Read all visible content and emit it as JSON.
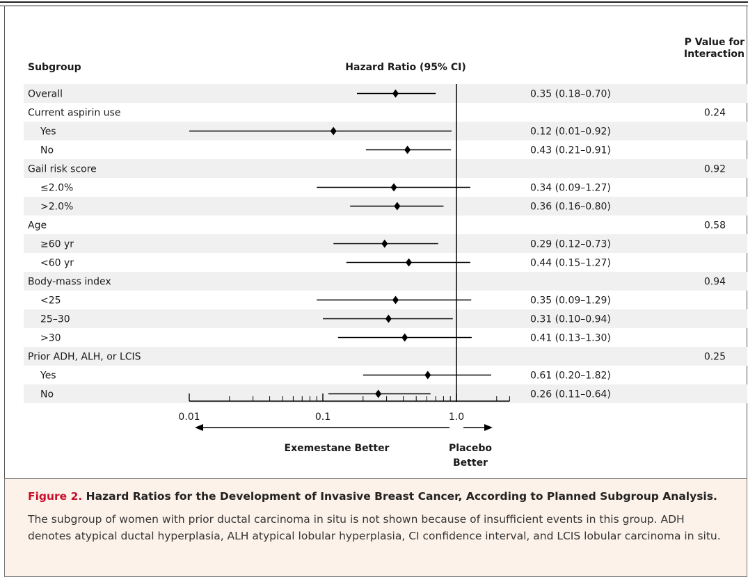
{
  "chart_data": {
    "type": "forest",
    "headers": {
      "subgroup": "Subgroup",
      "hazard_ratio": "Hazard Ratio (95% CI)",
      "p_value_line1": "P Value for",
      "p_value_line2": "Interaction"
    },
    "rows": [
      {
        "label": "Overall",
        "indent": false,
        "hr": 0.35,
        "lo": 0.18,
        "hi": 0.7,
        "ci_text": "0.35 (0.18–0.70)",
        "p": "",
        "shaded": true
      },
      {
        "label": "Current aspirin use",
        "indent": false,
        "hr": null,
        "lo": null,
        "hi": null,
        "ci_text": "",
        "p": "0.24",
        "shaded": false
      },
      {
        "label": "Yes",
        "indent": true,
        "hr": 0.12,
        "lo": 0.01,
        "hi": 0.92,
        "ci_text": "0.12 (0.01–0.92)",
        "p": "",
        "shaded": true
      },
      {
        "label": "No",
        "indent": true,
        "hr": 0.43,
        "lo": 0.21,
        "hi": 0.91,
        "ci_text": "0.43 (0.21–0.91)",
        "p": "",
        "shaded": false
      },
      {
        "label": "Gail risk score",
        "indent": false,
        "hr": null,
        "lo": null,
        "hi": null,
        "ci_text": "",
        "p": "0.92",
        "shaded": true
      },
      {
        "label": "≤2.0%",
        "indent": true,
        "hr": 0.34,
        "lo": 0.09,
        "hi": 1.27,
        "ci_text": "0.34 (0.09–1.27)",
        "p": "",
        "shaded": false
      },
      {
        "label": ">2.0%",
        "indent": true,
        "hr": 0.36,
        "lo": 0.16,
        "hi": 0.8,
        "ci_text": "0.36 (0.16–0.80)",
        "p": "",
        "shaded": true
      },
      {
        "label": "Age",
        "indent": false,
        "hr": null,
        "lo": null,
        "hi": null,
        "ci_text": "",
        "p": "0.58",
        "shaded": false
      },
      {
        "label": "≥60 yr",
        "indent": true,
        "hr": 0.29,
        "lo": 0.12,
        "hi": 0.73,
        "ci_text": "0.29 (0.12–0.73)",
        "p": "",
        "shaded": true
      },
      {
        "label": "<60 yr",
        "indent": true,
        "hr": 0.44,
        "lo": 0.15,
        "hi": 1.27,
        "ci_text": "0.44 (0.15–1.27)",
        "p": "",
        "shaded": false
      },
      {
        "label": "Body-mass index",
        "indent": false,
        "hr": null,
        "lo": null,
        "hi": null,
        "ci_text": "",
        "p": "0.94",
        "shaded": true
      },
      {
        "label": "<25",
        "indent": true,
        "hr": 0.35,
        "lo": 0.09,
        "hi": 1.29,
        "ci_text": "0.35 (0.09–1.29)",
        "p": "",
        "shaded": false
      },
      {
        "label": "25–30",
        "indent": true,
        "hr": 0.31,
        "lo": 0.1,
        "hi": 0.94,
        "ci_text": "0.31 (0.10–0.94)",
        "p": "",
        "shaded": true
      },
      {
        "label": ">30",
        "indent": true,
        "hr": 0.41,
        "lo": 0.13,
        "hi": 1.3,
        "ci_text": "0.41 (0.13–1.30)",
        "p": "",
        "shaded": false
      },
      {
        "label": "Prior ADH, ALH, or LCIS",
        "indent": false,
        "hr": null,
        "lo": null,
        "hi": null,
        "ci_text": "",
        "p": "0.25",
        "shaded": true
      },
      {
        "label": "Yes",
        "indent": true,
        "hr": 0.61,
        "lo": 0.2,
        "hi": 1.82,
        "ci_text": "0.61 (0.20–1.82)",
        "p": "",
        "shaded": false
      },
      {
        "label": "No",
        "indent": true,
        "hr": 0.26,
        "lo": 0.11,
        "hi": 0.64,
        "ci_text": "0.26 (0.11–0.64)",
        "p": "",
        "shaded": true
      }
    ],
    "x_axis": {
      "scale": "log",
      "range": [
        0.01,
        2.5
      ],
      "ticks": [
        {
          "value": 0.01,
          "label": "0.01"
        },
        {
          "value": 0.1,
          "label": "0.1"
        },
        {
          "value": 1.0,
          "label": "1.0"
        }
      ],
      "reference_line": 1.0
    },
    "direction_labels": {
      "left": "Exemestane Better",
      "right_line1": "Placebo",
      "right_line2": "Better"
    },
    "colors": {
      "row_shading": "#f0f0f0",
      "caption_background": "#fdf2e9",
      "figure_number": "#c8102e"
    }
  },
  "caption": {
    "figure_number": "Figure 2.",
    "title": "Hazard Ratios for the Development of Invasive Breast Cancer, According to Planned Subgroup Analysis.",
    "body": "The subgroup of women with prior ductal carcinoma in situ is not shown because of insufficient events in this group. ADH denotes atypical ductal hyperplasia, ALH atypical lobular hyperplasia, CI confidence interval, and LCIS lobular carcinoma in situ."
  }
}
